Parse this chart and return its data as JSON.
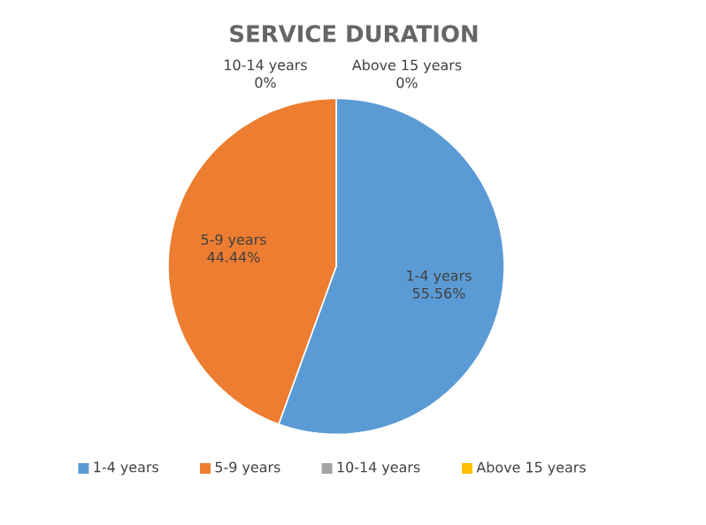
{
  "chart_data": {
    "type": "pie",
    "title": "SERVICE DURATION",
    "categories": [
      "1-4 years",
      "5-9 years",
      "10-14 years",
      "Above 15 years"
    ],
    "values": [
      55.56,
      44.44,
      0,
      0
    ],
    "value_labels": [
      "55.56%",
      "44.44%",
      "0%",
      "0%"
    ],
    "colors": [
      "#5b9bd5",
      "#ed7d31",
      "#a5a5a5",
      "#ffc000"
    ],
    "legend": "bottom"
  }
}
